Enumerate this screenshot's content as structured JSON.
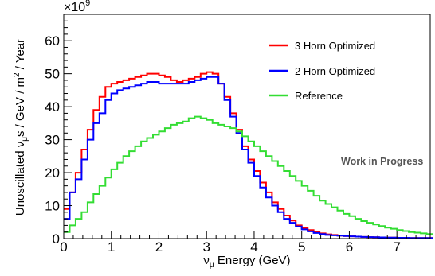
{
  "chart_data": {
    "type": "line",
    "step": true,
    "x_axis": {
      "label_main": "ν",
      "label_sub": "μ",
      "label_rest": " Energy (GeV)",
      "range": [
        0,
        7.7
      ],
      "ticks": [
        "0",
        "1",
        "2",
        "3",
        "4",
        "5",
        "6",
        "7"
      ]
    },
    "y_axis": {
      "label_prefix": "Unoscillated ν",
      "label_sub": "μ",
      "label_mid": "s /  GeV / m",
      "label_sup": "2",
      "label_suffix": " / Year",
      "multiplier": "×10",
      "multiplier_exp": "9",
      "range": [
        0,
        68
      ],
      "ticks": [
        "0",
        "10",
        "20",
        "30",
        "40",
        "50",
        "60"
      ]
    },
    "bin_edges": [
      0,
      0.125,
      0.25,
      0.375,
      0.5,
      0.625,
      0.75,
      0.875,
      1,
      1.125,
      1.25,
      1.375,
      1.5,
      1.625,
      1.75,
      1.875,
      2,
      2.125,
      2.25,
      2.375,
      2.5,
      2.625,
      2.75,
      2.875,
      3,
      3.125,
      3.25,
      3.375,
      3.5,
      3.625,
      3.75,
      3.875,
      4,
      4.125,
      4.25,
      4.375,
      4.5,
      4.625,
      4.75,
      4.875,
      5,
      5.125,
      5.25,
      5.375,
      5.5,
      5.625,
      5.75,
      5.875,
      6,
      6.125,
      6.25,
      6.375,
      6.5,
      6.625,
      6.75,
      6.875,
      7,
      7.125,
      7.25,
      7.375,
      7.5,
      7.625,
      7.75
    ],
    "series": [
      {
        "name": "3 Horn Optimized",
        "color": "#ff0000",
        "values": [
          9,
          14,
          20,
          27,
          33,
          39,
          43,
          46,
          47,
          47.5,
          48,
          48.5,
          49,
          49.5,
          50,
          50,
          49.5,
          49,
          48,
          47.5,
          48,
          48.5,
          49,
          50,
          50.5,
          50,
          47,
          43,
          38,
          33,
          28,
          24,
          20.5,
          17,
          14,
          11,
          9,
          7,
          5.5,
          4,
          3.2,
          2.6,
          2,
          1.6,
          1.3,
          1.1,
          0.9,
          0.8,
          0.7,
          0.6,
          0.5,
          0.45,
          0.4,
          0.35,
          0.3,
          0.3,
          0.25,
          0.25,
          0.2,
          0.2,
          0.2,
          0.2
        ]
      },
      {
        "name": "2 Horn Optimized",
        "color": "#0000ff",
        "values": [
          6,
          14,
          18,
          24,
          30,
          35,
          38,
          42,
          44,
          45,
          45.5,
          46,
          46.5,
          47,
          47.5,
          47.5,
          47,
          47,
          47,
          47,
          47,
          47.5,
          48,
          48.5,
          49,
          49,
          47,
          42,
          37,
          32,
          27,
          23,
          19,
          15.5,
          12.5,
          10,
          8,
          6,
          4.8,
          3.7,
          2.8,
          2.2,
          1.7,
          1.4,
          1.1,
          1,
          0.9,
          0.8,
          0.7,
          0.6,
          0.5,
          0.45,
          0.4,
          0.35,
          0.3,
          0.3,
          0.25,
          0.25,
          0.2,
          0.2,
          0.2,
          0.2
        ]
      },
      {
        "name": "Reference",
        "color": "#33dd33",
        "values": [
          2,
          4,
          6,
          8,
          11,
          13.5,
          16,
          18.5,
          21,
          23,
          25,
          26.5,
          28,
          29.5,
          30.5,
          31.5,
          32.5,
          33.5,
          34.5,
          35,
          35.5,
          36.5,
          37,
          36.5,
          36,
          35,
          34.5,
          34,
          33.5,
          32.5,
          31,
          29.5,
          28,
          26.5,
          25,
          23.5,
          22,
          20.5,
          19,
          17.5,
          16,
          14.5,
          13,
          11.5,
          10.5,
          9.5,
          8.5,
          7.5,
          6.8,
          6,
          5.3,
          4.8,
          4.3,
          3.8,
          3.3,
          3,
          2.6,
          2.3,
          2,
          1.8,
          1.6,
          1.4
        ]
      }
    ],
    "legend": {
      "placement": "top-right"
    },
    "annotations": [
      "Work in Progress"
    ],
    "grid": false
  }
}
